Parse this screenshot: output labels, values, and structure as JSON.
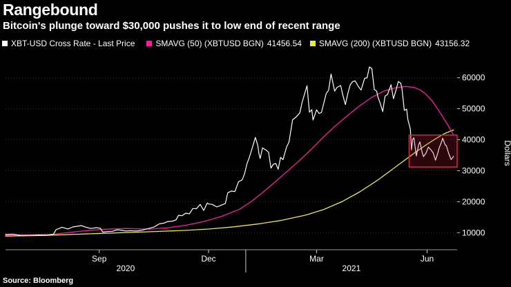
{
  "header": {
    "title": "Rangebound",
    "subtitle": "Bitcoin's plunge toward $30,000 pushes it to low end of recent range"
  },
  "legend": {
    "items": [
      {
        "label": "XBT-USD Cross Rate - Last Price",
        "value": "",
        "color": "#ffffff"
      },
      {
        "label": "SMAVG (50) (XBTUSD BGN)",
        "value": "41456.54",
        "color": "#ff17a4"
      },
      {
        "label": "SMAVG (200) (XBTUSD BGN)",
        "value": "43156.32",
        "color": "#ece93f"
      }
    ]
  },
  "source": "Source: Bloomberg",
  "chart_data": {
    "type": "line",
    "title": "Rangebound",
    "subtitle": "Bitcoin's plunge toward $30,000 pushes it to low end of recent range",
    "xlabel": "",
    "ylabel": "Dollars",
    "background": "#000000",
    "legend_position": "top",
    "x_unit": "days since 2020-06-15",
    "x_domain": [
      0,
      376
    ],
    "ylim": [
      4500,
      65500
    ],
    "y_ticks": [
      10000,
      20000,
      30000,
      40000,
      50000,
      60000
    ],
    "x_ticks": [
      {
        "day": 78,
        "label": "Sep"
      },
      {
        "day": 169,
        "label": "Dec"
      },
      {
        "day": 259,
        "label": "Mar"
      },
      {
        "day": 351,
        "label": "Jun"
      }
    ],
    "year_labels": [
      {
        "day": 100,
        "label": "2020"
      },
      {
        "day": 288,
        "label": "2021"
      }
    ],
    "year_divider_day": 200,
    "grid": {
      "horizontal": true,
      "vertical": false,
      "color": "#2f2f2f"
    },
    "series": [
      {
        "name": "XBT-USD Cross Rate - Last Price",
        "color": "#ffffff",
        "width": 1.2,
        "points": [
          [
            0,
            9450
          ],
          [
            6,
            9550
          ],
          [
            12,
            9150
          ],
          [
            20,
            9120
          ],
          [
            28,
            9200
          ],
          [
            35,
            9150
          ],
          [
            40,
            9550
          ],
          [
            42,
            10950
          ],
          [
            47,
            11750
          ],
          [
            52,
            11200
          ],
          [
            56,
            11850
          ],
          [
            63,
            12300
          ],
          [
            66,
            11900
          ],
          [
            71,
            11350
          ],
          [
            76,
            11650
          ],
          [
            79,
            11400
          ],
          [
            81,
            10200
          ],
          [
            85,
            10350
          ],
          [
            89,
            10450
          ],
          [
            93,
            10950
          ],
          [
            97,
            10750
          ],
          [
            100,
            10550
          ],
          [
            104,
            10650
          ],
          [
            109,
            10550
          ],
          [
            113,
            10750
          ],
          [
            116,
            11050
          ],
          [
            120,
            11450
          ],
          [
            124,
            11900
          ],
          [
            128,
            12850
          ],
          [
            132,
            13100
          ],
          [
            135,
            13600
          ],
          [
            139,
            13750
          ],
          [
            142,
            14150
          ],
          [
            144,
            15600
          ],
          [
            147,
            15500
          ],
          [
            150,
            16300
          ],
          [
            153,
            16100
          ],
          [
            156,
            17800
          ],
          [
            159,
            17750
          ],
          [
            162,
            19150
          ],
          [
            165,
            17200
          ],
          [
            168,
            19600
          ],
          [
            169,
            19250
          ],
          [
            172,
            19150
          ],
          [
            176,
            18300
          ],
          [
            180,
            18950
          ],
          [
            183,
            19400
          ],
          [
            185,
            22900
          ],
          [
            188,
            23450
          ],
          [
            191,
            23300
          ],
          [
            194,
            26450
          ],
          [
            197,
            27050
          ],
          [
            199,
            29000
          ],
          [
            201,
            32200
          ],
          [
            203,
            34300
          ],
          [
            205,
            36850
          ],
          [
            208,
            40750
          ],
          [
            210,
            38200
          ],
          [
            211,
            35500
          ],
          [
            212,
            33950
          ],
          [
            214,
            37350
          ],
          [
            217,
            36650
          ],
          [
            219,
            35950
          ],
          [
            221,
            30850
          ],
          [
            223,
            32100
          ],
          [
            225,
            32300
          ],
          [
            227,
            30450
          ],
          [
            229,
            34300
          ],
          [
            231,
            33550
          ],
          [
            234,
            37650
          ],
          [
            236,
            39250
          ],
          [
            239,
            46450
          ],
          [
            242,
            47350
          ],
          [
            245,
            48650
          ],
          [
            247,
            52150
          ],
          [
            251,
            57450
          ],
          [
            253,
            48900
          ],
          [
            255,
            49700
          ],
          [
            256,
            46350
          ],
          [
            259,
            49650
          ],
          [
            261,
            48500
          ],
          [
            263,
            48800
          ],
          [
            267,
            54900
          ],
          [
            269,
            56000
          ],
          [
            271,
            61200
          ],
          [
            274,
            55650
          ],
          [
            276,
            56900
          ],
          [
            279,
            57500
          ],
          [
            281,
            54100
          ],
          [
            283,
            51350
          ],
          [
            285,
            54900
          ],
          [
            287,
            57750
          ],
          [
            289,
            58750
          ],
          [
            291,
            59000
          ],
          [
            294,
            57050
          ],
          [
            296,
            56050
          ],
          [
            299,
            59850
          ],
          [
            301,
            59950
          ],
          [
            303,
            63500
          ],
          [
            305,
            62950
          ],
          [
            307,
            56250
          ],
          [
            309,
            55650
          ],
          [
            310,
            53850
          ],
          [
            312,
            51700
          ],
          [
            314,
            49100
          ],
          [
            316,
            54050
          ],
          [
            318,
            54600
          ],
          [
            321,
            57750
          ],
          [
            323,
            53200
          ],
          [
            325,
            55850
          ],
          [
            327,
            58800
          ],
          [
            329,
            58250
          ],
          [
            330,
            56700
          ],
          [
            332,
            49500
          ],
          [
            334,
            49850
          ],
          [
            335,
            46450
          ],
          [
            337,
            43550
          ],
          [
            338,
            36750
          ],
          [
            339,
            40150
          ],
          [
            340,
            40600
          ],
          [
            342,
            34750
          ],
          [
            344,
            38450
          ],
          [
            345,
            39300
          ],
          [
            347,
            35650
          ],
          [
            348,
            34550
          ],
          [
            350,
            35650
          ],
          [
            352,
            37600
          ],
          [
            354,
            36850
          ],
          [
            356,
            35800
          ],
          [
            358,
            33400
          ],
          [
            360,
            35850
          ],
          [
            361,
            37300
          ],
          [
            363,
            39250
          ],
          [
            364,
            40500
          ],
          [
            366,
            38350
          ],
          [
            367,
            38100
          ],
          [
            369,
            35550
          ],
          [
            371,
            33600
          ],
          [
            373,
            34650
          ]
        ]
      },
      {
        "name": "SMAVG (50) (XBTUSD BGN)",
        "color": "#ff17a4",
        "width": 1.3,
        "points": [
          [
            0,
            9250
          ],
          [
            20,
            9300
          ],
          [
            40,
            9500
          ],
          [
            60,
            10400
          ],
          [
            80,
            11100
          ],
          [
            100,
            11350
          ],
          [
            120,
            11150
          ],
          [
            135,
            11600
          ],
          [
            150,
            12400
          ],
          [
            165,
            13600
          ],
          [
            180,
            15300
          ],
          [
            195,
            17600
          ],
          [
            205,
            20200
          ],
          [
            215,
            23300
          ],
          [
            225,
            26600
          ],
          [
            235,
            30000
          ],
          [
            245,
            33400
          ],
          [
            255,
            37100
          ],
          [
            265,
            41000
          ],
          [
            275,
            44600
          ],
          [
            285,
            47900
          ],
          [
            295,
            51000
          ],
          [
            305,
            53700
          ],
          [
            315,
            55700
          ],
          [
            325,
            56800
          ],
          [
            333,
            57200
          ],
          [
            340,
            56900
          ],
          [
            345,
            56100
          ],
          [
            350,
            54700
          ],
          [
            355,
            52600
          ],
          [
            360,
            49800
          ],
          [
            364,
            47400
          ],
          [
            368,
            44900
          ],
          [
            371,
            42900
          ],
          [
            373,
            41456.54
          ]
        ]
      },
      {
        "name": "SMAVG (200) (XBTUSD BGN)",
        "color": "#ece93f",
        "width": 1.3,
        "points": [
          [
            0,
            8900
          ],
          [
            30,
            9100
          ],
          [
            60,
            9500
          ],
          [
            90,
            9900
          ],
          [
            120,
            10300
          ],
          [
            150,
            10750
          ],
          [
            170,
            11200
          ],
          [
            190,
            11900
          ],
          [
            210,
            12800
          ],
          [
            230,
            14000
          ],
          [
            250,
            15700
          ],
          [
            265,
            17500
          ],
          [
            280,
            20000
          ],
          [
            295,
            23200
          ],
          [
            310,
            27000
          ],
          [
            325,
            31300
          ],
          [
            340,
            35600
          ],
          [
            350,
            38300
          ],
          [
            358,
            40300
          ],
          [
            365,
            41900
          ],
          [
            370,
            42700
          ],
          [
            373,
            43156.32
          ]
        ]
      }
    ],
    "highlight_box": {
      "day_start": 336,
      "day_end": 376,
      "value_low": 31200,
      "value_high": 41500,
      "stroke": "#d92540",
      "fill_rgba": "rgba(217,37,64,0.20)"
    }
  }
}
